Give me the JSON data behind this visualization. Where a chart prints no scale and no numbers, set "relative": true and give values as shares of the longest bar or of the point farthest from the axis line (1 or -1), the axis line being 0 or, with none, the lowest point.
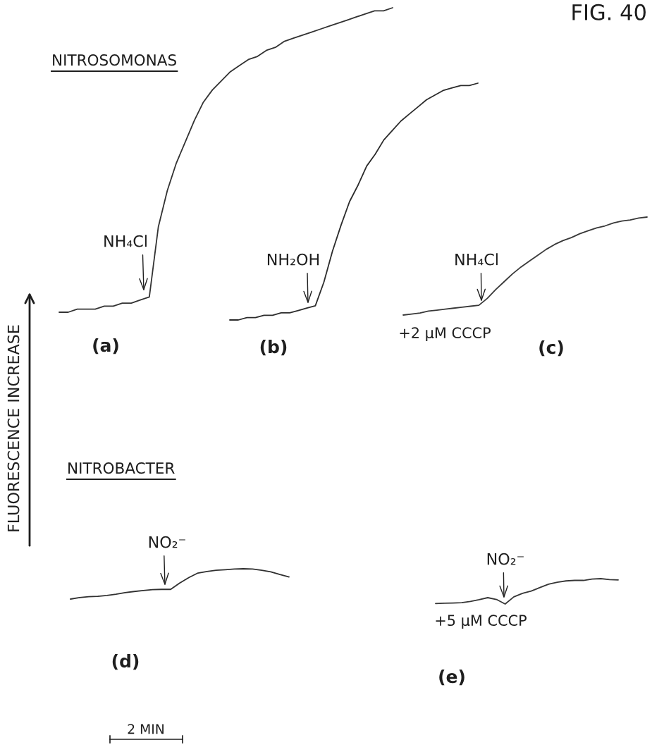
{
  "chart_data": [
    {
      "type": "line",
      "title": "NITROSOMONAS",
      "xlabel": "(a)",
      "ylabel": "FLUORESCENCE INCREASE",
      "relative": true,
      "categories": [
        null,
        null,
        null,
        null,
        null,
        null,
        null,
        null,
        null,
        null,
        null,
        null,
        null,
        null,
        null,
        null,
        null,
        null,
        null,
        null,
        null,
        null,
        null,
        null,
        null,
        null,
        null,
        null,
        null,
        null,
        null,
        null,
        null,
        null,
        null,
        null,
        null,
        null
      ],
      "series": [
        {
          "color": "#333333",
          "values": [
            0,
            0.0,
            0.01,
            0.01,
            0.01,
            0.02,
            0.02,
            0.03,
            0.03,
            0.04,
            0.05,
            0.28,
            0.4,
            0.49,
            0.56,
            0.63,
            0.69,
            0.73,
            0.76,
            0.79,
            0.81,
            0.83,
            0.84,
            0.86,
            0.87,
            0.89,
            0.9,
            0.91,
            0.92,
            0.93,
            0.94,
            0.95,
            0.96,
            0.97,
            0.98,
            0.99,
            0.99,
            1
          ]
        }
      ],
      "annotations": [
        "NH₄Cl",
        "FIG. 40"
      ]
    },
    {
      "type": "line",
      "xlabel": "(b)",
      "relative": true,
      "categories": [
        null,
        null,
        null,
        null,
        null,
        null,
        null,
        null,
        null,
        null,
        null,
        null,
        null,
        null,
        null,
        null,
        null,
        null,
        null,
        null,
        null,
        null,
        null,
        null,
        null,
        null,
        null,
        null,
        null,
        null
      ],
      "series": [
        {
          "color": "#2c2c2c",
          "values": [
            0,
            0.0,
            0.01,
            0.01,
            0.02,
            0.02,
            0.03,
            0.03,
            0.04,
            0.05,
            0.06,
            0.16,
            0.29,
            0.4,
            0.5,
            0.57,
            0.65,
            0.7,
            0.76,
            0.8,
            0.84,
            0.87,
            0.9,
            0.93,
            0.95,
            0.97,
            0.98,
            0.99,
            0.99,
            1
          ]
        }
      ],
      "annotations": [
        "NH₂OH"
      ]
    },
    {
      "type": "line",
      "xlabel": "(c)",
      "relative": true,
      "categories": [
        null,
        null,
        null,
        null,
        null,
        null,
        null,
        null,
        null,
        null,
        null,
        null,
        null,
        null,
        null,
        null,
        null,
        null,
        null,
        null,
        null,
        null,
        null,
        null,
        null,
        null,
        null,
        null,
        null,
        null
      ],
      "series": [
        {
          "color": "#383838",
          "values": [
            0,
            0.01,
            0.02,
            0.04,
            0.05,
            0.06,
            0.07,
            0.08,
            0.09,
            0.1,
            0.17,
            0.26,
            0.34,
            0.42,
            0.49,
            0.55,
            0.61,
            0.67,
            0.72,
            0.76,
            0.79,
            0.83,
            0.86,
            0.89,
            0.91,
            0.94,
            0.96,
            0.97,
            0.99,
            1
          ]
        }
      ],
      "annotations": [
        "NH₄Cl",
        "+2 μM CCCP"
      ]
    },
    {
      "type": "line",
      "title": "NITROBACTER",
      "xlabel": "(d)",
      "relative": true,
      "categories": [
        null,
        null,
        null,
        null,
        null,
        null,
        null,
        null,
        null,
        null,
        null,
        null,
        null,
        null,
        null,
        null,
        null,
        null,
        null,
        null,
        null,
        null,
        null,
        null,
        null
      ],
      "series": [
        {
          "color": "#303030",
          "values": [
            0,
            0.05,
            0.08,
            0.09,
            0.12,
            0.16,
            0.21,
            0.25,
            0.28,
            0.31,
            0.32,
            0.32,
            0.53,
            0.71,
            0.86,
            0.91,
            0.95,
            0.97,
            0.99,
            1,
            0.99,
            0.95,
            0.9,
            0.81,
            0.73
          ]
        }
      ],
      "annotations": [
        "NO₂⁻",
        "2 MIN"
      ]
    },
    {
      "type": "line",
      "xlabel": "(e)",
      "relative": true,
      "categories": [
        null,
        null,
        null,
        null,
        null,
        null,
        null,
        null,
        null,
        null,
        null,
        null,
        null,
        null,
        null,
        null,
        null,
        null,
        null,
        null,
        null,
        null
      ],
      "series": [
        {
          "color": "#363636",
          "values": [
            0.02,
            0.03,
            0.04,
            0.05,
            0.1,
            0.17,
            0.25,
            0.18,
            0,
            0.28,
            0.42,
            0.51,
            0.65,
            0.78,
            0.86,
            0.91,
            0.93,
            0.93,
            0.98,
            1,
            0.96,
            0.95
          ]
        }
      ],
      "annotations": [
        "NO₂⁻",
        "+5 μM CCCP"
      ]
    }
  ]
}
